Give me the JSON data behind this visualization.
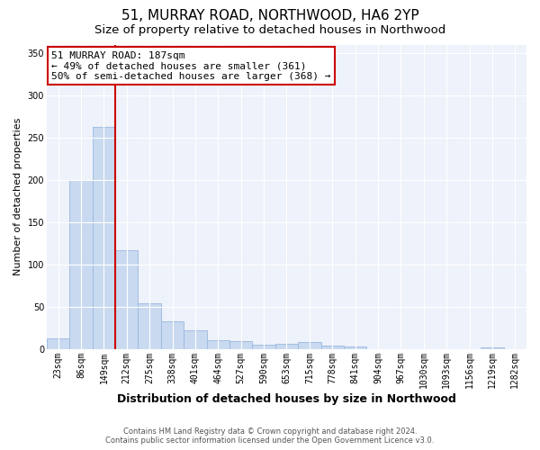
{
  "title": "51, MURRAY ROAD, NORTHWOOD, HA6 2YP",
  "subtitle": "Size of property relative to detached houses in Northwood",
  "xlabel": "Distribution of detached houses by size in Northwood",
  "ylabel": "Number of detached properties",
  "bar_labels": [
    "23sqm",
    "86sqm",
    "149sqm",
    "212sqm",
    "275sqm",
    "338sqm",
    "401sqm",
    "464sqm",
    "527sqm",
    "590sqm",
    "653sqm",
    "715sqm",
    "778sqm",
    "841sqm",
    "904sqm",
    "967sqm",
    "1030sqm",
    "1093sqm",
    "1156sqm",
    "1219sqm",
    "1282sqm"
  ],
  "bar_values": [
    12,
    200,
    263,
    117,
    54,
    33,
    22,
    10,
    9,
    5,
    6,
    8,
    4,
    3,
    0,
    0,
    0,
    0,
    0,
    2,
    0
  ],
  "bar_color": "#c8d9f0",
  "bar_edge_color": "#9ab8de",
  "vline_color": "#cc0000",
  "annotation_text": "51 MURRAY ROAD: 187sqm\n← 49% of detached houses are smaller (361)\n50% of semi-detached houses are larger (368) →",
  "annotation_box_color": "#ffffff",
  "annotation_box_edge": "#cc0000",
  "ylim": [
    0,
    360
  ],
  "yticks": [
    0,
    50,
    100,
    150,
    200,
    250,
    300,
    350
  ],
  "bg_color": "#eef2fa",
  "footer1": "Contains HM Land Registry data © Crown copyright and database right 2024.",
  "footer2": "Contains public sector information licensed under the Open Government Licence v3.0.",
  "title_fontsize": 11,
  "subtitle_fontsize": 9.5,
  "tick_fontsize": 7,
  "xlabel_fontsize": 9,
  "ylabel_fontsize": 8
}
